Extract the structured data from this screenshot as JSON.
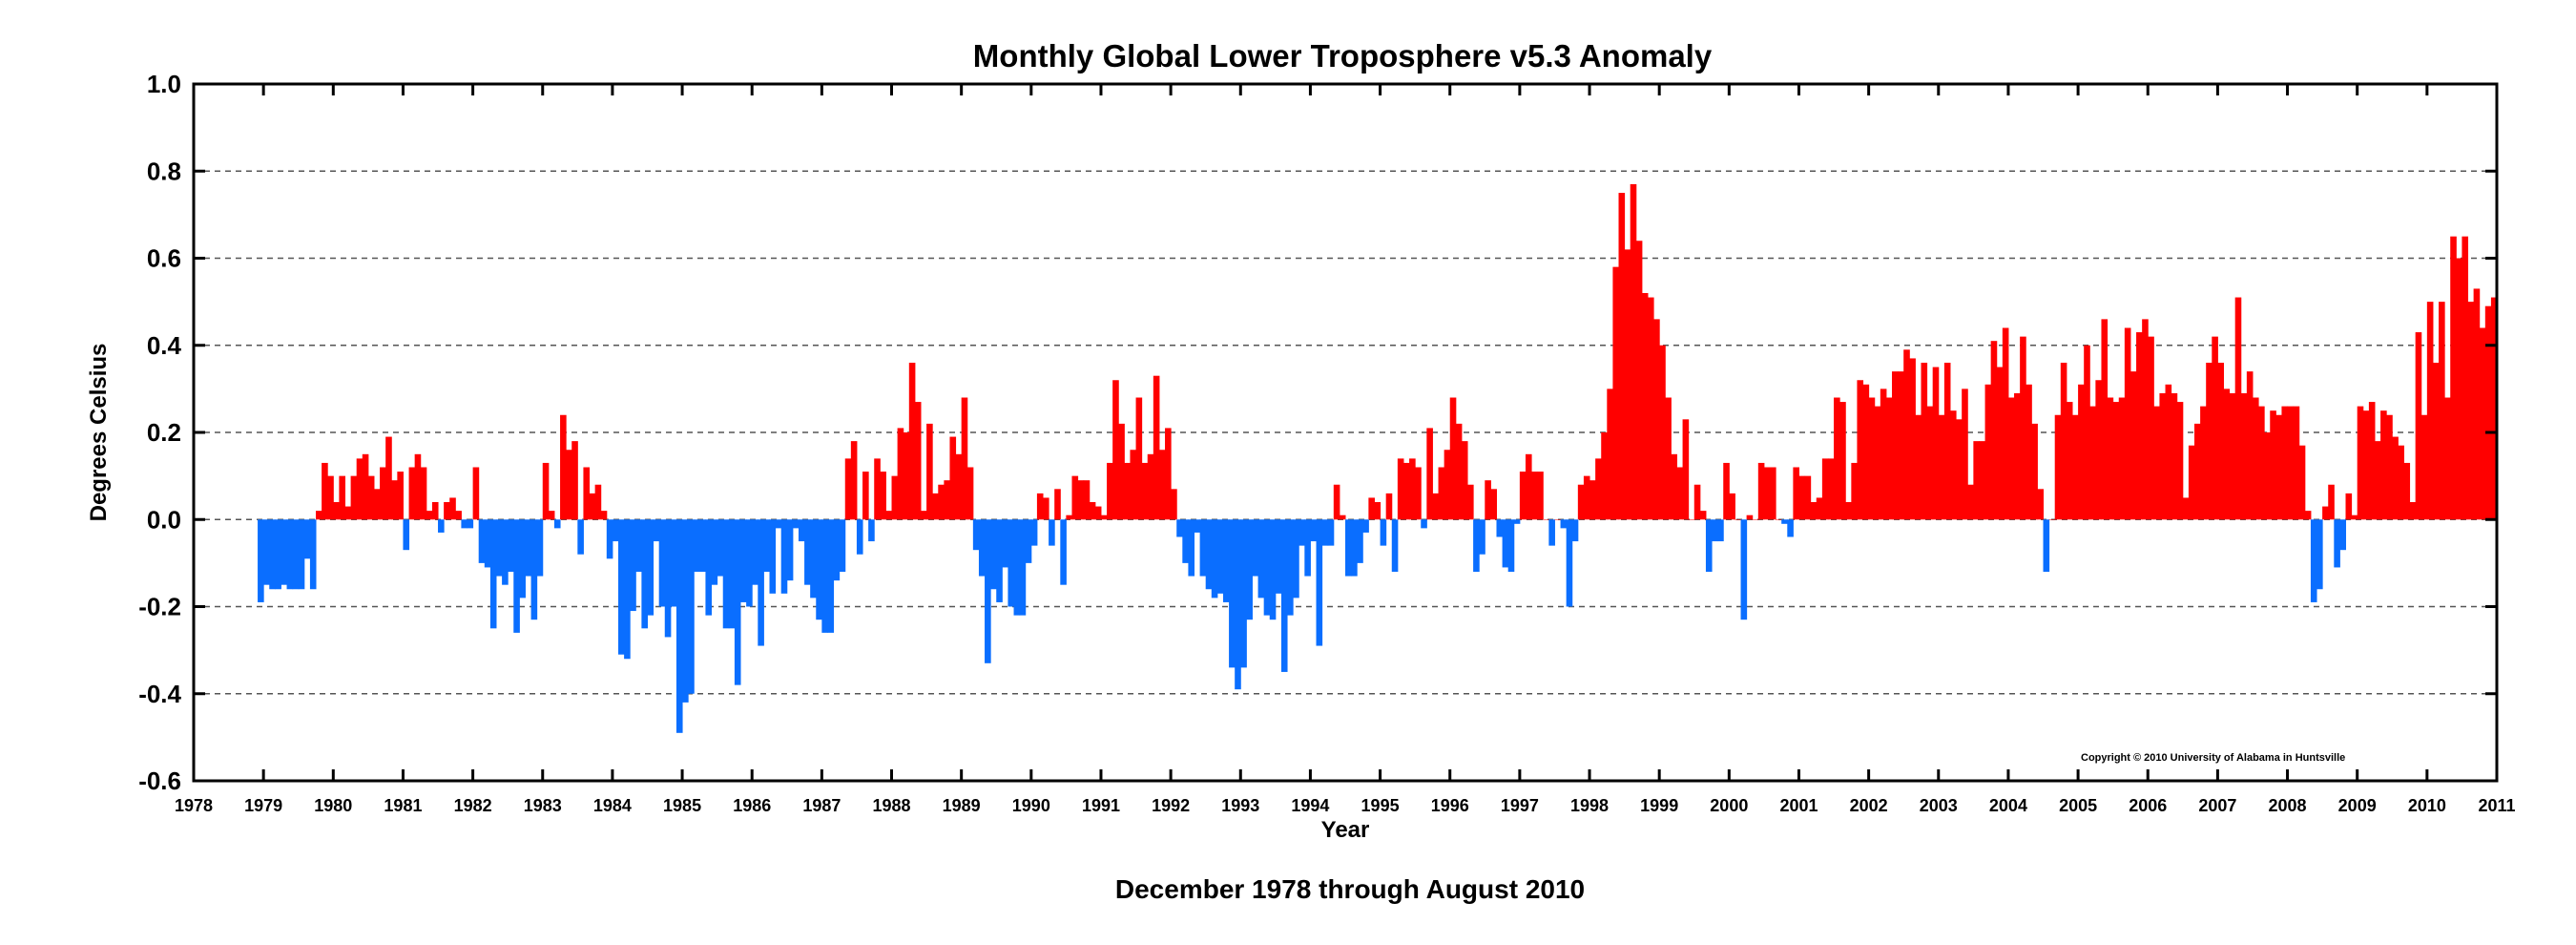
{
  "chart_data": {
    "type": "bar",
    "title": "Monthly Global Lower Troposphere v5.3 Anomaly",
    "xlabel": "Year",
    "ylabel": "Degrees Celsius",
    "caption": "December 1978 through August 2010",
    "copyright": "Copyright © 2010 University of Alabama in Huntsville",
    "xlim": [
      1978,
      2011
    ],
    "ylim": [
      -0.6,
      1.0
    ],
    "x_ticks": [
      "1978",
      "1979",
      "1980",
      "1981",
      "1982",
      "1983",
      "1984",
      "1985",
      "1986",
      "1987",
      "1988",
      "1989",
      "1990",
      "1991",
      "1992",
      "1993",
      "1994",
      "1995",
      "1996",
      "1997",
      "1998",
      "1999",
      "2000",
      "2001",
      "2002",
      "2003",
      "2004",
      "2005",
      "2006",
      "2007",
      "2008",
      "2009",
      "2010",
      "2011"
    ],
    "y_ticks": [
      "-0.6",
      "-0.4",
      "-0.2",
      "0.0",
      "0.2",
      "0.4",
      "0.6",
      "0.8",
      "1.0"
    ],
    "y_tick_values": [
      -0.6,
      -0.4,
      -0.2,
      0.0,
      0.2,
      0.4,
      0.6,
      0.8,
      1.0
    ],
    "x_tick_values": [
      1978,
      1979,
      1980,
      1981,
      1982,
      1983,
      1984,
      1985,
      1986,
      1987,
      1988,
      1989,
      1990,
      1991,
      1992,
      1993,
      1994,
      1995,
      1996,
      1997,
      1998,
      1999,
      2000,
      2001,
      2002,
      2003,
      2004,
      2005,
      2006,
      2007,
      2008,
      2009,
      2010,
      2011
    ],
    "grid": "horizontal dashed",
    "colors": {
      "positive": "#ff0000",
      "negative": "#0a6eff"
    },
    "start": "1978-12",
    "end": "2010-08",
    "values": [
      -0.19,
      -0.15,
      -0.16,
      -0.16,
      -0.15,
      -0.16,
      -0.16,
      -0.16,
      -0.09,
      -0.16,
      0.02,
      0.13,
      0.1,
      0.04,
      0.1,
      0.03,
      0.1,
      0.14,
      0.15,
      0.1,
      0.07,
      0.12,
      0.19,
      0.09,
      0.11,
      -0.07,
      0.12,
      0.15,
      0.12,
      0.02,
      0.04,
      -0.03,
      0.04,
      0.05,
      0.02,
      -0.02,
      -0.02,
      0.12,
      -0.1,
      -0.11,
      -0.25,
      -0.13,
      -0.15,
      -0.12,
      -0.26,
      -0.18,
      -0.13,
      -0.23,
      -0.13,
      0.13,
      0.02,
      -0.02,
      0.24,
      0.16,
      0.18,
      -0.08,
      0.12,
      0.06,
      0.08,
      0.02,
      -0.09,
      -0.05,
      -0.31,
      -0.32,
      -0.21,
      -0.12,
      -0.25,
      -0.22,
      -0.05,
      -0.2,
      -0.27,
      -0.2,
      -0.49,
      -0.42,
      -0.4,
      -0.12,
      -0.12,
      -0.22,
      -0.15,
      -0.13,
      -0.25,
      -0.25,
      -0.38,
      -0.19,
      -0.2,
      -0.15,
      -0.29,
      -0.12,
      -0.17,
      -0.02,
      -0.17,
      -0.14,
      -0.02,
      -0.05,
      -0.15,
      -0.18,
      -0.23,
      -0.26,
      -0.26,
      -0.14,
      -0.12,
      0.14,
      0.18,
      -0.08,
      0.11,
      -0.05,
      0.14,
      0.11,
      0.02,
      0.1,
      0.21,
      0.2,
      0.36,
      0.27,
      0.02,
      0.22,
      0.06,
      0.08,
      0.09,
      0.19,
      0.15,
      0.28,
      0.12,
      -0.07,
      -0.13,
      -0.33,
      -0.16,
      -0.19,
      -0.11,
      -0.2,
      -0.22,
      -0.22,
      -0.1,
      -0.06,
      0.06,
      0.05,
      -0.06,
      0.07,
      -0.15,
      0.01,
      0.1,
      0.09,
      0.09,
      0.04,
      0.03,
      0.01,
      0.13,
      0.32,
      0.22,
      0.13,
      0.16,
      0.28,
      0.13,
      0.15,
      0.33,
      0.16,
      0.21,
      0.07,
      -0.04,
      -0.1,
      -0.13,
      -0.03,
      -0.13,
      -0.16,
      -0.18,
      -0.17,
      -0.19,
      -0.34,
      -0.39,
      -0.34,
      -0.23,
      -0.13,
      -0.18,
      -0.22,
      -0.23,
      -0.17,
      -0.35,
      -0.22,
      -0.18,
      -0.06,
      -0.13,
      -0.05,
      -0.29,
      -0.06,
      -0.06,
      0.08,
      0.01,
      -0.13,
      -0.13,
      -0.1,
      -0.03,
      0.05,
      0.04,
      -0.06,
      0.06,
      -0.12,
      0.14,
      0.13,
      0.14,
      0.12,
      -0.02,
      0.21,
      0.06,
      0.12,
      0.16,
      0.28,
      0.22,
      0.18,
      0.08,
      -0.12,
      -0.08,
      0.09,
      0.07,
      -0.04,
      -0.11,
      -0.12,
      -0.01,
      0.11,
      0.15,
      0.11,
      0.11,
      0.0,
      -0.06,
      0.0,
      -0.02,
      -0.2,
      -0.05,
      0.08,
      0.1,
      0.09,
      0.14,
      0.2,
      0.3,
      0.58,
      0.75,
      0.62,
      0.77,
      0.64,
      0.52,
      0.51,
      0.46,
      0.4,
      0.28,
      0.15,
      0.12,
      0.23,
      0.0,
      0.08,
      0.02,
      -0.12,
      -0.05,
      -0.05,
      0.13,
      0.06,
      0.0,
      -0.23,
      0.01,
      0.0,
      0.13,
      0.12,
      0.12,
      0.0,
      -0.01,
      -0.04,
      0.12,
      0.1,
      0.1,
      0.04,
      0.05,
      0.14,
      0.14,
      0.28,
      0.27,
      0.04,
      0.13,
      0.32,
      0.31,
      0.28,
      0.26,
      0.3,
      0.28,
      0.34,
      0.34,
      0.39,
      0.37,
      0.24,
      0.36,
      0.26,
      0.35,
      0.24,
      0.36,
      0.25,
      0.23,
      0.3,
      0.08,
      0.18,
      0.18,
      0.31,
      0.41,
      0.35,
      0.44,
      0.28,
      0.29,
      0.42,
      0.31,
      0.22,
      0.07,
      -0.12,
      0.0,
      0.24,
      0.36,
      0.27,
      0.24,
      0.31,
      0.4,
      0.26,
      0.32,
      0.46,
      0.28,
      0.27,
      0.28,
      0.44,
      0.34,
      0.43,
      0.46,
      0.42,
      0.26,
      0.29,
      0.31,
      0.29,
      0.27,
      0.05,
      0.17,
      0.22,
      0.26,
      0.36,
      0.42,
      0.36,
      0.3,
      0.29,
      0.51,
      0.29,
      0.34,
      0.28,
      0.26,
      0.2,
      0.25,
      0.24,
      0.26,
      0.26,
      0.26,
      0.17,
      0.02,
      -0.19,
      -0.16,
      0.03,
      0.08,
      -0.11,
      -0.07,
      0.06,
      0.01,
      0.26,
      0.25,
      0.27,
      0.18,
      0.25,
      0.24,
      0.19,
      0.17,
      0.13,
      0.04,
      0.43,
      0.24,
      0.5,
      0.36,
      0.5,
      0.28,
      0.65,
      0.6,
      0.65,
      0.5,
      0.53,
      0.44,
      0.49,
      0.51
    ]
  }
}
